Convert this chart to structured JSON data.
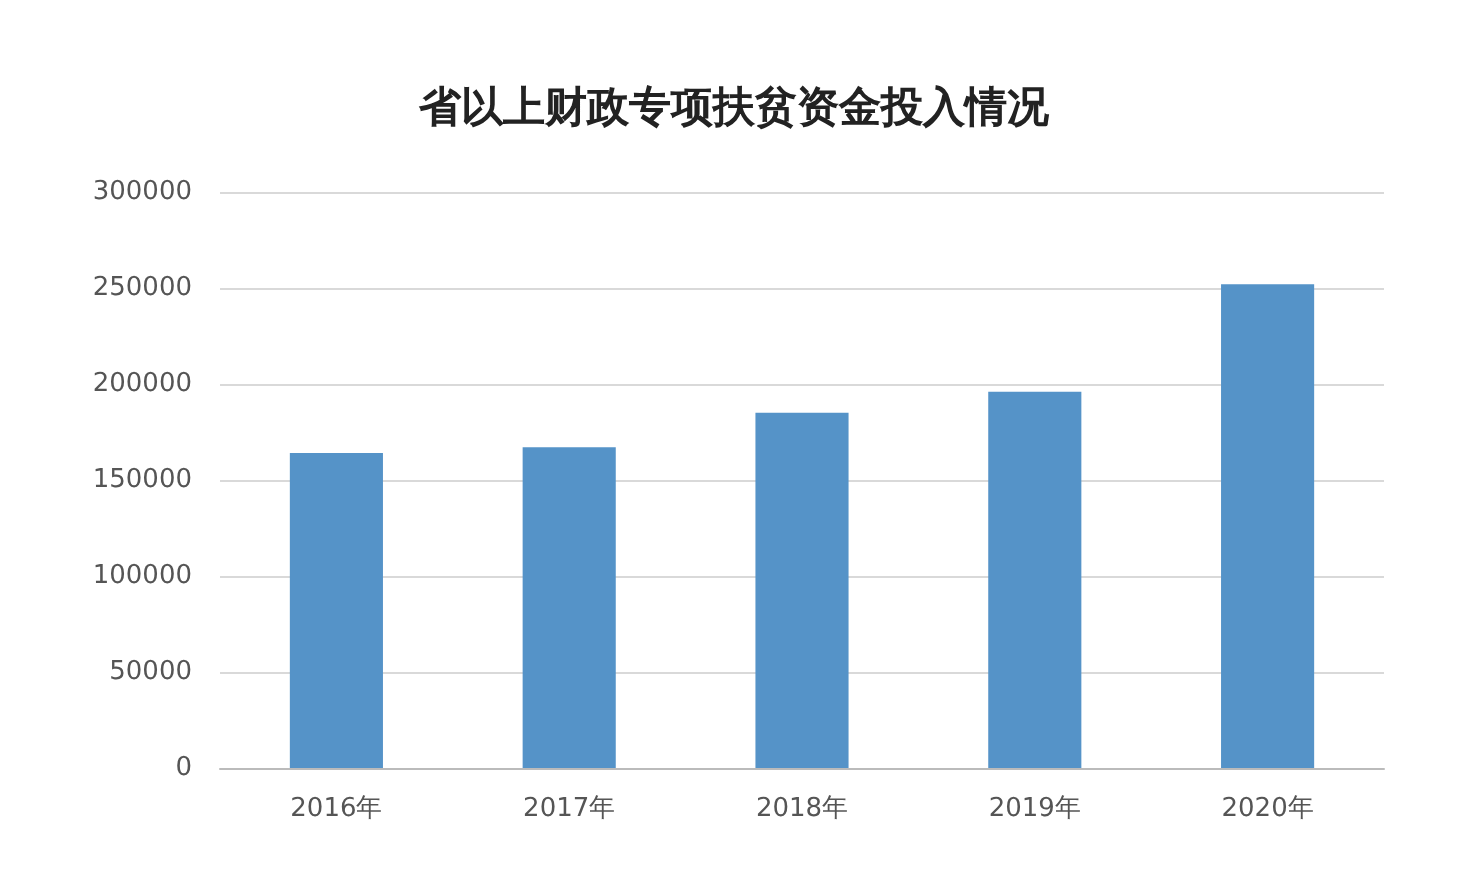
{
  "chart_data": {
    "type": "bar",
    "title": "省以上财政专项扶贫资金投入情况",
    "categories": [
      "2016年",
      "2017年",
      "2018年",
      "2019年",
      "2020年"
    ],
    "values": [
      164000,
      167000,
      185000,
      196000,
      252000
    ],
    "color": "#5593c8",
    "ylim": [
      0,
      300000
    ],
    "yticks": [
      0,
      50000,
      100000,
      150000,
      200000,
      250000,
      300000
    ],
    "grid": "y"
  }
}
